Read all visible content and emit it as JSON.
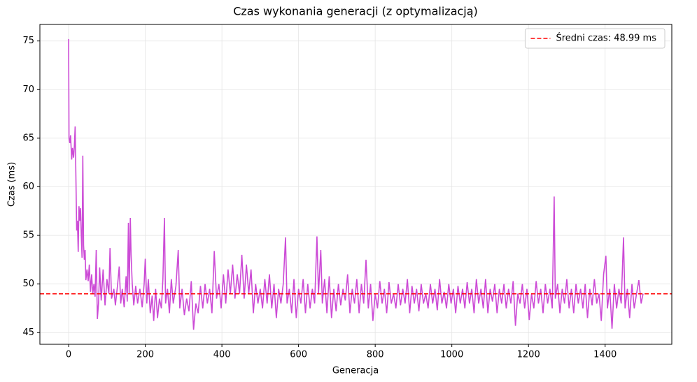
{
  "chart_data": {
    "type": "line",
    "title": "Czas wykonania generacji (z optymalizacją)",
    "x_label": "Generacja",
    "y_label": "Czas (ms)",
    "x": [
      0,
      1,
      3,
      5,
      8,
      10,
      13,
      15,
      17,
      19,
      21,
      23,
      25,
      27,
      29,
      31,
      33,
      35,
      37,
      39,
      41,
      43,
      45,
      48,
      51,
      54,
      57,
      60,
      63,
      66,
      69,
      72,
      75,
      78,
      81,
      85,
      90,
      95,
      100,
      105,
      108,
      112,
      118,
      122,
      128,
      132,
      136,
      140,
      145,
      150,
      153,
      156,
      158,
      161,
      163,
      166,
      170,
      175,
      180,
      186,
      192,
      197,
      200,
      204,
      208,
      213,
      218,
      222,
      227,
      232,
      237,
      242,
      246,
      250,
      253,
      258,
      263,
      268,
      273,
      280,
      286,
      290,
      296,
      302,
      308,
      314,
      320,
      326,
      332,
      338,
      344,
      350,
      356,
      362,
      368,
      374,
      380,
      386,
      392,
      398,
      404,
      410,
      416,
      422,
      428,
      434,
      440,
      446,
      452,
      458,
      464,
      470,
      476,
      482,
      488,
      494,
      500,
      506,
      512,
      518,
      524,
      530,
      536,
      542,
      548,
      554,
      560,
      566,
      570,
      576,
      582,
      588,
      594,
      600,
      606,
      612,
      618,
      624,
      630,
      636,
      642,
      648,
      652,
      658,
      662,
      668,
      674,
      680,
      686,
      692,
      698,
      704,
      710,
      716,
      722,
      728,
      734,
      740,
      746,
      752,
      758,
      764,
      770,
      776,
      782,
      788,
      794,
      800,
      806,
      812,
      818,
      824,
      830,
      836,
      842,
      848,
      854,
      860,
      866,
      872,
      878,
      884,
      890,
      896,
      902,
      908,
      914,
      920,
      926,
      932,
      938,
      944,
      950,
      956,
      962,
      968,
      974,
      980,
      986,
      992,
      998,
      1004,
      1010,
      1016,
      1022,
      1028,
      1034,
      1040,
      1046,
      1052,
      1058,
      1064,
      1070,
      1076,
      1082,
      1088,
      1094,
      1100,
      1106,
      1112,
      1118,
      1124,
      1130,
      1136,
      1142,
      1148,
      1154,
      1160,
      1166,
      1172,
      1178,
      1184,
      1190,
      1196,
      1202,
      1208,
      1214,
      1220,
      1226,
      1232,
      1238,
      1244,
      1250,
      1256,
      1262,
      1267,
      1270,
      1276,
      1282,
      1288,
      1294,
      1300,
      1306,
      1312,
      1318,
      1324,
      1330,
      1336,
      1342,
      1348,
      1354,
      1360,
      1366,
      1372,
      1378,
      1384,
      1390,
      1396,
      1402,
      1406,
      1412,
      1418,
      1424,
      1430,
      1436,
      1442,
      1448,
      1452,
      1458,
      1464,
      1470,
      1476,
      1482,
      1488,
      1494,
      1499
    ],
    "series": [
      {
        "color": "#cc4bd6",
        "values": [
          75.2,
          65,
          64.5,
          65.3,
          62.8,
          64,
          63,
          64.2,
          66.2,
          61,
          55.5,
          56.5,
          53.3,
          58,
          56.5,
          57.8,
          55,
          52.7,
          63.2,
          54,
          52.5,
          53.5,
          50.4,
          51.5,
          50.3,
          52,
          49.2,
          51,
          49,
          50,
          48.7,
          53.5,
          46.4,
          48,
          51.7,
          48.3,
          51.5,
          47.8,
          50.5,
          49,
          53.7,
          48.5,
          49.5,
          47.8,
          50,
          51.8,
          48,
          49.5,
          47.6,
          50.8,
          48.2,
          56.3,
          49,
          56.8,
          53,
          50,
          47.8,
          49.8,
          48,
          49.5,
          47.6,
          50,
          52.6,
          48,
          50.5,
          47,
          48.8,
          46.2,
          49.5,
          46.5,
          48.5,
          47.5,
          50.5,
          56.8,
          48,
          49.5,
          47,
          50.5,
          48,
          49.8,
          53.5,
          47.5,
          49.5,
          46.8,
          48.5,
          47.2,
          50.3,
          45.3,
          48,
          47,
          49.8,
          47.5,
          50,
          48,
          49.5,
          47,
          53.4,
          48.5,
          50,
          47.5,
          51,
          48,
          51.5,
          49,
          52,
          48.5,
          51,
          49,
          53,
          48.5,
          52,
          49,
          51.5,
          47,
          50,
          48,
          49.5,
          47.5,
          50.5,
          48,
          51,
          47.5,
          50,
          46.5,
          49.5,
          48,
          50,
          54.8,
          48,
          49.5,
          47,
          50.5,
          46.5,
          49.5,
          48,
          50.5,
          47,
          50,
          47.5,
          49.5,
          48,
          54.9,
          49,
          53.5,
          48,
          50.5,
          47,
          50.8,
          46.5,
          49.5,
          47.2,
          50,
          47.8,
          49.5,
          48.3,
          51,
          47,
          49.5,
          48,
          50.5,
          47,
          50,
          48,
          52.5,
          47.5,
          50,
          46.2,
          49,
          47.5,
          50.3,
          48,
          49.5,
          47,
          50.2,
          48,
          49,
          47.5,
          50,
          47.8,
          49.5,
          48,
          50.5,
          47,
          49.8,
          48,
          49.5,
          47.2,
          50,
          48,
          49,
          47.5,
          50,
          48,
          49.5,
          47.3,
          50.5,
          48,
          49.2,
          47.5,
          50,
          48,
          49.5,
          47,
          49.8,
          48,
          49.5,
          47.5,
          50.2,
          48,
          49.5,
          47,
          50.5,
          48,
          49.5,
          47.5,
          50.5,
          47,
          49.5,
          48.2,
          50,
          47,
          49.5,
          48,
          50,
          47.5,
          49.5,
          48,
          50.3,
          45.7,
          49,
          48,
          50,
          47.5,
          49.5,
          46.3,
          49,
          47.5,
          50.3,
          48,
          49.5,
          47,
          50,
          48,
          49.5,
          47.5,
          59,
          48.5,
          50,
          47,
          49.5,
          48,
          50.5,
          47.5,
          49.5,
          47,
          50,
          48,
          49.5,
          47.5,
          50,
          46.5,
          49.5,
          47.8,
          50.5,
          48,
          49,
          46.2,
          51,
          52.9,
          47.5,
          49.5,
          45.4,
          50,
          47.5,
          49.5,
          48,
          54.8,
          47.5,
          49.5,
          46.5,
          50,
          47.5,
          49,
          50.4,
          48,
          49
        ]
      }
    ],
    "reference_line": {
      "value": 48.99,
      "label": "Średni czas: 48.99 ms",
      "color": "#ff0000",
      "dashed": true
    },
    "legend": "upper right",
    "xlim": [
      -75,
      1574
    ],
    "ylim": [
      43.8,
      76.7
    ],
    "xticks": [
      0,
      200,
      400,
      600,
      800,
      1000,
      1200,
      1400
    ],
    "yticks": [
      45,
      50,
      55,
      60,
      65,
      70,
      75
    ],
    "grid": true
  }
}
